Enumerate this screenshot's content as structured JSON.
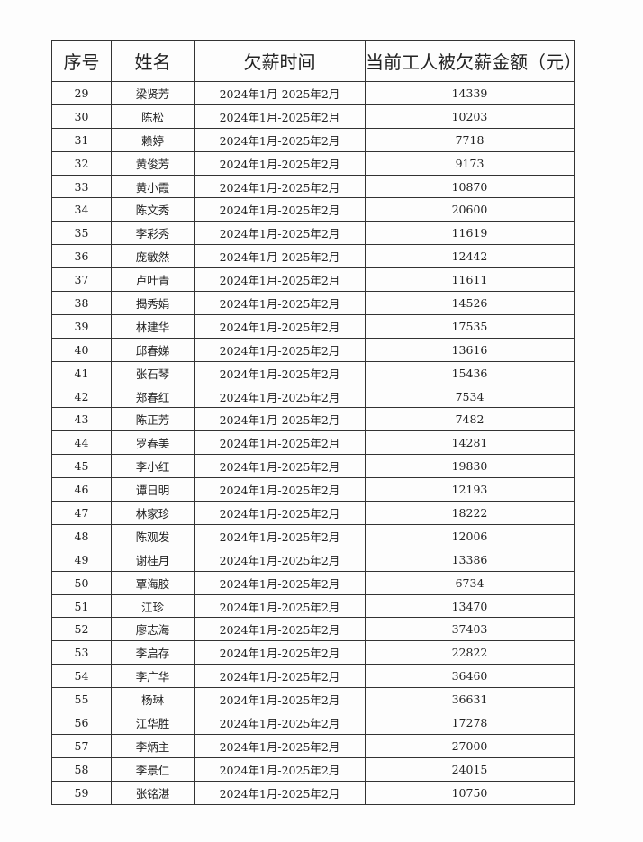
{
  "table": {
    "headers": [
      "序号",
      "姓名",
      "欠薪时间",
      "当前工人被欠薪金额（元）"
    ],
    "rows": [
      [
        "29",
        "梁贤芳",
        "2024年1月-2025年2月",
        "14339"
      ],
      [
        "30",
        "陈松",
        "2024年1月-2025年2月",
        "10203"
      ],
      [
        "31",
        "赖婷",
        "2024年1月-2025年2月",
        "7718"
      ],
      [
        "32",
        "黄俊芳",
        "2024年1月-2025年2月",
        "9173"
      ],
      [
        "33",
        "黄小霞",
        "2024年1月-2025年2月",
        "10870"
      ],
      [
        "34",
        "陈文秀",
        "2024年1月-2025年2月",
        "20600"
      ],
      [
        "35",
        "李彩秀",
        "2024年1月-2025年2月",
        "11619"
      ],
      [
        "36",
        "庞敏然",
        "2024年1月-2025年2月",
        "12442"
      ],
      [
        "37",
        "卢叶青",
        "2024年1月-2025年2月",
        "11611"
      ],
      [
        "38",
        "揭秀娟",
        "2024年1月-2025年2月",
        "14526"
      ],
      [
        "39",
        "林建华",
        "2024年1月-2025年2月",
        "17535"
      ],
      [
        "40",
        "邱春娣",
        "2024年1月-2025年2月",
        "13616"
      ],
      [
        "41",
        "张石琴",
        "2024年1月-2025年2月",
        "15436"
      ],
      [
        "42",
        "郑春红",
        "2024年1月-2025年2月",
        "7534"
      ],
      [
        "43",
        "陈正芳",
        "2024年1月-2025年2月",
        "7482"
      ],
      [
        "44",
        "罗春美",
        "2024年1月-2025年2月",
        "14281"
      ],
      [
        "45",
        "李小红",
        "2024年1月-2025年2月",
        "19830"
      ],
      [
        "46",
        "谭日明",
        "2024年1月-2025年2月",
        "12193"
      ],
      [
        "47",
        "林家珍",
        "2024年1月-2025年2月",
        "18222"
      ],
      [
        "48",
        "陈观发",
        "2024年1月-2025年2月",
        "12006"
      ],
      [
        "49",
        "谢桂月",
        "2024年1月-2025年2月",
        "13386"
      ],
      [
        "50",
        "覃海胶",
        "2024年1月-2025年2月",
        "6734"
      ],
      [
        "51",
        "江珍",
        "2024年1月-2025年2月",
        "13470"
      ],
      [
        "52",
        "廖志海",
        "2024年1月-2025年2月",
        "37403"
      ],
      [
        "53",
        "李启存",
        "2024年1月-2025年2月",
        "22822"
      ],
      [
        "54",
        "李广华",
        "2024年1月-2025年2月",
        "36460"
      ],
      [
        "55",
        "杨琳",
        "2024年1月-2025年2月",
        "36631"
      ],
      [
        "56",
        "江华胜",
        "2024年1月-2025年2月",
        "17278"
      ],
      [
        "57",
        "李炳主",
        "2024年1月-2025年2月",
        "27000"
      ],
      [
        "58",
        "李景仁",
        "2024年1月-2025年2月",
        "24015"
      ],
      [
        "59",
        "张铭湛",
        "2024年1月-2025年2月",
        "10750"
      ]
    ]
  }
}
